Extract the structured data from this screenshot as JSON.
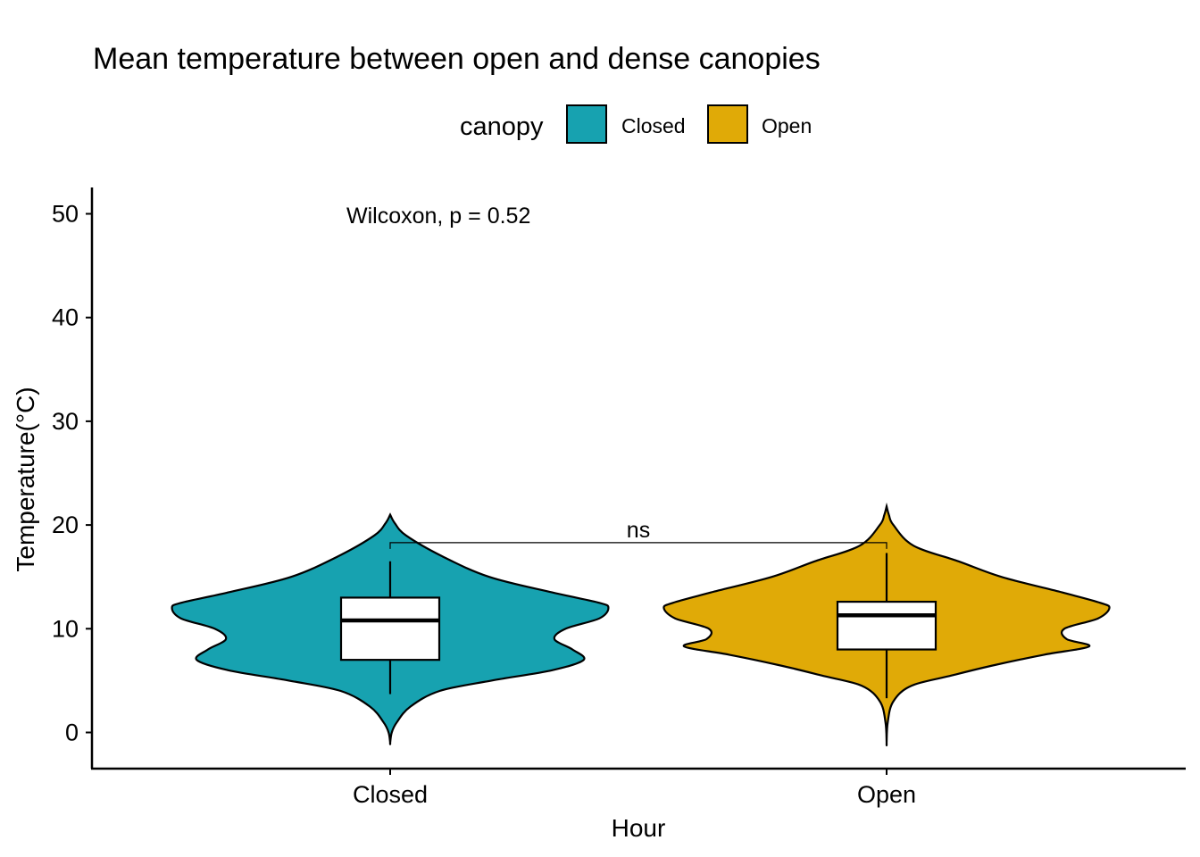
{
  "chart_data": {
    "type": "violin",
    "title": "Mean temperature between open and dense canopies",
    "xlabel": "Hour",
    "ylabel": "Temperature(°C)",
    "ylim": [
      -3.5,
      52.5
    ],
    "yticks": [
      0,
      10,
      20,
      30,
      40,
      50
    ],
    "categories": [
      "Closed",
      "Open"
    ],
    "legend": {
      "title": "canopy",
      "placement": "top",
      "entries": [
        {
          "label": "Closed",
          "color": "#17A2B0"
        },
        {
          "label": "Open",
          "color": "#E0AA07"
        }
      ]
    },
    "series": [
      {
        "category": "Closed",
        "color": "#17A2B0",
        "violin_min": -1.0,
        "violin_max": 21.0,
        "box": {
          "min": 3.7,
          "q1": 7.0,
          "median": 10.8,
          "q3": 13.0,
          "max": 16.5
        }
      },
      {
        "category": "Open",
        "color": "#E0AA07",
        "violin_min": -1.0,
        "violin_max": 21.8,
        "box": {
          "min": 3.3,
          "q1": 8.0,
          "median": 11.3,
          "q3": 12.6,
          "max": 17.3
        }
      }
    ],
    "annotations": {
      "test_label": "Wilcoxon, p = 0.52",
      "significance_label": "ns",
      "bracket_y": 18.3
    },
    "grid": false
  }
}
